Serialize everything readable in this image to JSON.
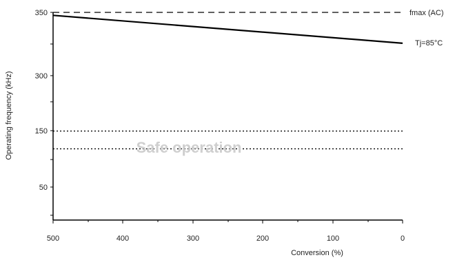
{
  "chart_data": {
    "type": "line",
    "xlabel": "Conversion (%)",
    "ylabel": "Operating frequency (kHz)",
    "x_ticks": [
      "500",
      "400",
      "300",
      "200",
      "100",
      "0"
    ],
    "y_ticks": [
      "350",
      "",
      "300",
      "",
      "150",
      "",
      "50",
      ""
    ],
    "series": [
      {
        "name": "Tj=85°C",
        "style": "solid",
        "color": "#000000",
        "x": [
          500,
          0
        ],
        "y": [
          345,
          298
        ]
      }
    ],
    "reference_lines": [
      {
        "label": "fmax (AC)",
        "style": "dashed",
        "y": 350
      },
      {
        "label": "",
        "style": "dotted",
        "y": 150
      },
      {
        "label": "",
        "style": "dotted",
        "y": 120
      }
    ],
    "annotations": [
      {
        "text": "Safe operation"
      }
    ],
    "x_range": [
      500,
      0
    ],
    "y_range": [
      0,
      350
    ],
    "grid": false
  }
}
